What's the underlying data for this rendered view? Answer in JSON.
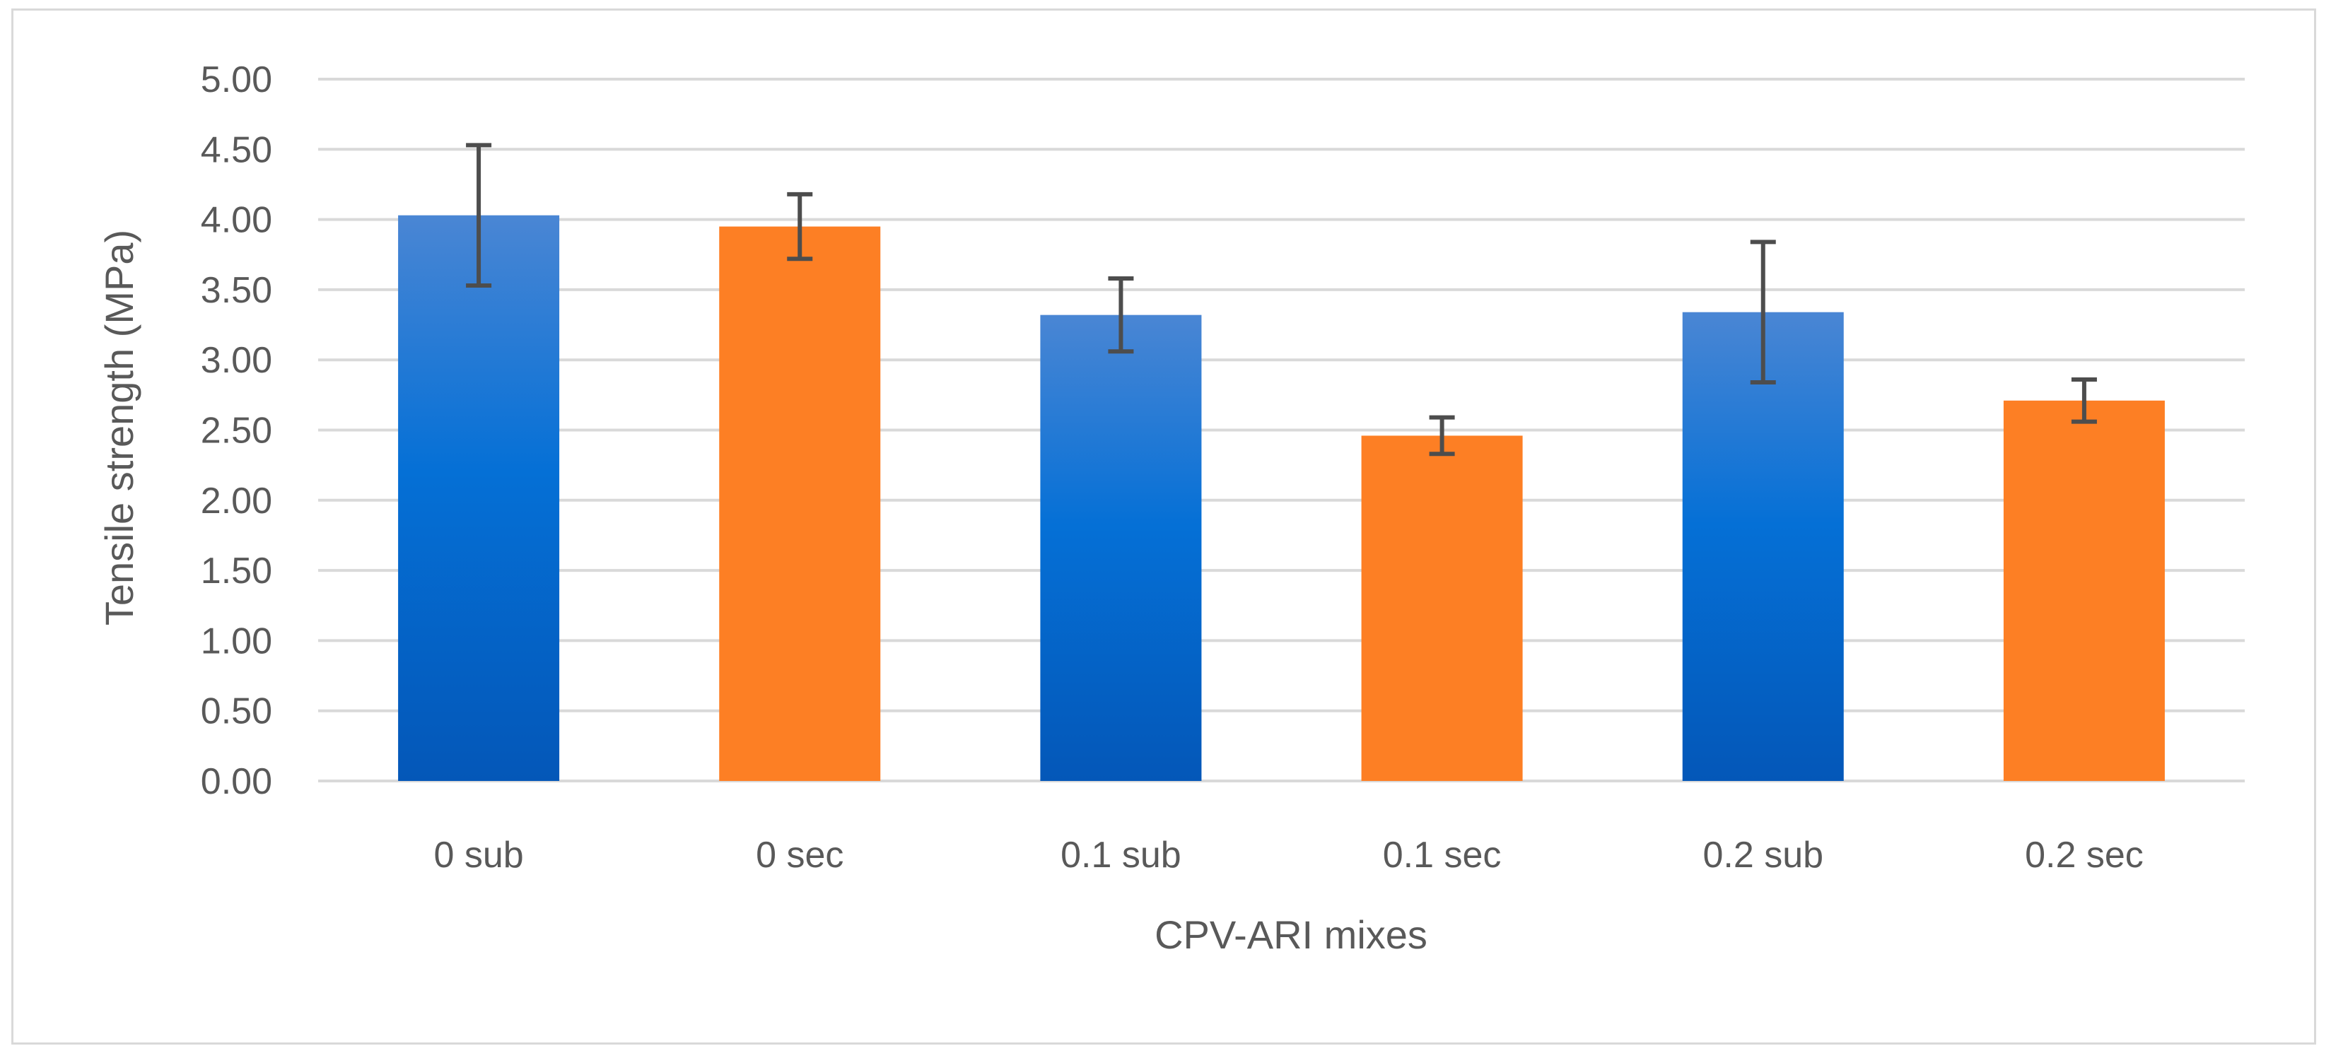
{
  "chart_data": {
    "type": "bar",
    "title": "",
    "xlabel": "CPV-ARI mixes",
    "ylabel": "Tensile strength (MPa)",
    "ylim": [
      0,
      5
    ],
    "ytick_step": 0.5,
    "yticks": [
      "0.00",
      "0.50",
      "1.00",
      "1.50",
      "2.00",
      "2.50",
      "3.00",
      "3.50",
      "4.00",
      "4.50",
      "5.00"
    ],
    "categories": [
      "0 sub",
      "0 sec",
      "0.1 sub",
      "0.1 sec",
      "0.2 sub",
      "0.2 sec"
    ],
    "values": [
      4.03,
      3.95,
      3.32,
      2.46,
      3.34,
      2.71
    ],
    "error_plus_minus": [
      0.5,
      0.23,
      0.26,
      0.13,
      0.5,
      0.15
    ],
    "bar_colors": [
      "#0a63c7",
      "#fd7f24",
      "#0a63c7",
      "#fd7f24",
      "#0a63c7",
      "#fd7f24"
    ],
    "grid": true,
    "legend": "none"
  },
  "colors": {
    "blue_top": "#4a86d4",
    "blue_mid": "#0570d6",
    "blue_bottom": "#0457b8",
    "orange": "#fd7f24",
    "grid": "#d9d9d9",
    "error_bar": "#4d4d4d",
    "text": "#595959"
  }
}
